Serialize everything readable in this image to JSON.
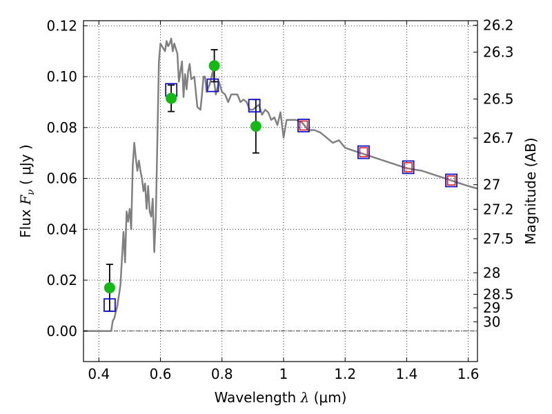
{
  "chart_data": {
    "type": "scatter",
    "xlabel": "Wavelength  λ (μm)",
    "ylabel": "Flux  F_ν  ( μJy )",
    "y2label": "Magnitude (AB)",
    "xlim": [
      0.35,
      1.63
    ],
    "ylim": [
      -0.012,
      0.122
    ],
    "grid": true,
    "x_ticks": [
      0.4,
      0.6,
      0.8,
      1.0,
      1.2,
      1.4,
      1.6
    ],
    "x_tick_labels": [
      "0.4",
      "0.6",
      "0.8",
      "1",
      "1.2",
      "1.4",
      "1.6"
    ],
    "y_ticks": [
      0.0,
      0.02,
      0.04,
      0.06,
      0.08,
      0.1,
      0.12
    ],
    "y_tick_labels": [
      "0.00",
      "0.02",
      "0.04",
      "0.06",
      "0.08",
      "0.10",
      "0.12"
    ],
    "mag_ticks": [
      {
        "mag": 26.2,
        "label": "26.2"
      },
      {
        "mag": 26.3,
        "label": "26.3"
      },
      {
        "mag": 26.5,
        "label": "26.5"
      },
      {
        "mag": 26.7,
        "label": "26.7"
      },
      {
        "mag": 27.0,
        "label": "27"
      },
      {
        "mag": 27.2,
        "label": "27.2"
      },
      {
        "mag": 27.5,
        "label": "27.5"
      },
      {
        "mag": 28.0,
        "label": "28"
      },
      {
        "mag": 28.5,
        "label": "28.5"
      },
      {
        "mag": 29.0,
        "label": "29"
      },
      {
        "mag": 30.0,
        "label": "30"
      }
    ],
    "zero_line": 0.0,
    "colors": {
      "model": "#808080",
      "observed": "#11bb11",
      "model_band": "#1111cc",
      "inner_square": "#dd1111",
      "errorbar": "#000000"
    },
    "series": [
      {
        "kind": "line",
        "x": [
          0.35,
          0.43,
          0.44,
          0.445,
          0.45,
          0.46,
          0.47,
          0.48,
          0.485,
          0.49,
          0.495,
          0.5,
          0.505,
          0.51,
          0.515,
          0.52,
          0.525,
          0.53,
          0.535,
          0.54,
          0.545,
          0.55,
          0.555,
          0.56,
          0.565,
          0.57,
          0.575,
          0.58,
          0.585,
          0.59,
          0.595,
          0.6,
          0.605,
          0.61,
          0.615,
          0.62,
          0.625,
          0.63,
          0.635,
          0.64,
          0.645,
          0.65,
          0.655,
          0.66,
          0.665,
          0.67,
          0.675,
          0.68,
          0.685,
          0.69,
          0.695,
          0.7,
          0.71,
          0.72,
          0.73,
          0.735,
          0.74,
          0.745,
          0.75,
          0.76,
          0.77,
          0.78,
          0.79,
          0.8,
          0.81,
          0.82,
          0.83,
          0.84,
          0.85,
          0.86,
          0.87,
          0.88,
          0.89,
          0.9,
          0.91,
          0.92,
          0.93,
          0.94,
          0.95,
          0.96,
          0.97,
          0.98,
          0.99,
          1.0,
          1.01,
          1.02,
          1.04,
          1.06,
          1.08,
          1.1,
          1.12,
          1.14,
          1.16,
          1.18,
          1.2,
          1.25,
          1.3,
          1.35,
          1.4,
          1.45,
          1.5,
          1.55,
          1.6,
          1.63
        ],
        "y": [
          0.0,
          0.0,
          0.0,
          0.004,
          0.005,
          0.01,
          0.018,
          0.039,
          0.027,
          0.047,
          0.043,
          0.048,
          0.04,
          0.065,
          0.074,
          0.068,
          0.063,
          0.067,
          0.063,
          0.06,
          0.055,
          0.058,
          0.048,
          0.057,
          0.047,
          0.045,
          0.052,
          0.031,
          0.045,
          0.075,
          0.106,
          0.113,
          0.112,
          0.111,
          0.11,
          0.114,
          0.112,
          0.113,
          0.115,
          0.11,
          0.113,
          0.111,
          0.109,
          0.098,
          0.102,
          0.106,
          0.092,
          0.101,
          0.095,
          0.102,
          0.105,
          0.099,
          0.1,
          0.088,
          0.087,
          0.093,
          0.1,
          0.1,
          0.094,
          0.097,
          0.102,
          0.093,
          0.098,
          0.094,
          0.093,
          0.09,
          0.093,
          0.093,
          0.093,
          0.09,
          0.091,
          0.09,
          0.087,
          0.087,
          0.088,
          0.089,
          0.085,
          0.087,
          0.086,
          0.083,
          0.084,
          0.081,
          0.086,
          0.076,
          0.083,
          0.083,
          0.083,
          0.082,
          0.079,
          0.079,
          0.078,
          0.076,
          0.074,
          0.075,
          0.072,
          0.07,
          0.068,
          0.066,
          0.064,
          0.063,
          0.061,
          0.059,
          0.057,
          0.056
        ]
      },
      {
        "kind": "observed",
        "x": [
          0.435,
          0.635,
          0.775,
          0.91
        ],
        "y": [
          0.017,
          0.0915,
          0.1043,
          0.0805
        ],
        "yerr": [
          0.0092,
          0.0052,
          0.0063,
          0.0105
        ]
      },
      {
        "kind": "model_band",
        "x": [
          0.435,
          0.635,
          0.77,
          0.905,
          1.065,
          1.26,
          1.405,
          1.545
        ],
        "y": [
          0.0102,
          0.0948,
          0.0966,
          0.0886,
          0.0808,
          0.0703,
          0.0644,
          0.0592
        ],
        "inner": [
          false,
          false,
          false,
          false,
          true,
          true,
          true,
          true
        ]
      }
    ]
  }
}
